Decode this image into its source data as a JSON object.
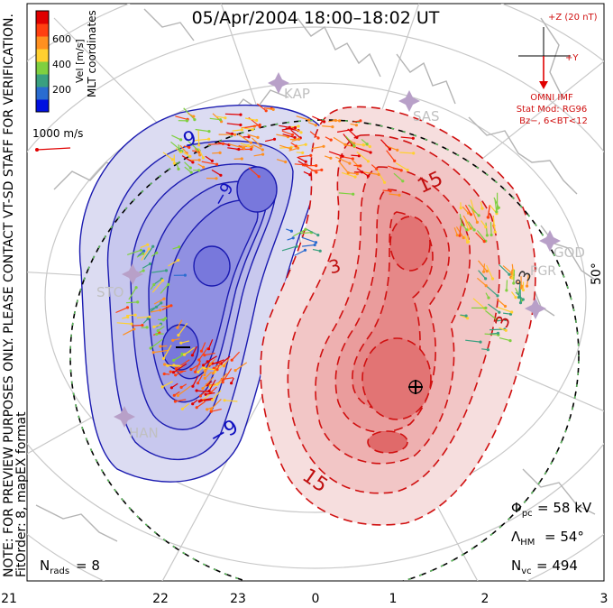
{
  "title": "05/Apr/2004 18:00–18:02 UT",
  "notice": "NOTE: FOR PREVIEW PURPOSES ONLY. PLEASE CONTACT VT-SD STAFF FOR VERIFICATION.",
  "fit_info": "FitOrder: 8, mapEX format",
  "color_bar": {
    "title": "MLT coordinates",
    "label": "Vel [m/s]",
    "ticks": [
      "600",
      "400",
      "200"
    ],
    "colors": [
      "#0010e0",
      "#2a6cd0",
      "#3aa080",
      "#7fd040",
      "#ffd030",
      "#ff9020",
      "#ff4010",
      "#e00000"
    ]
  },
  "vector_scale": "1000 m/s",
  "imf": {
    "z_label": "+Z (20 nT)",
    "y_label": "+Y",
    "source": "OMNI IMF",
    "model": "Stat Mod: RG96",
    "condition": "Bz−, 6<BT<12"
  },
  "stations": [
    "KAP",
    "SAS",
    "STO",
    "HAN",
    "GOD",
    "PGR"
  ],
  "lat_label": "50°",
  "contour_labels": {
    "negative": [
      "9",
      "−9",
      "−9"
    ],
    "positive": [
      "15",
      "3",
      "15",
      "3",
      "°3"
    ]
  },
  "stats": {
    "phi_pc": "= 58 kV",
    "lambda_hm": "= 54°",
    "n_vc": "= 494",
    "n_rads": "= 8"
  },
  "mlt_axis": [
    "21",
    "22",
    "23",
    "0",
    "1",
    "2",
    "3"
  ],
  "palette": {
    "negative": "#1010c0",
    "positive": "#d01010",
    "boundary": "#40c040"
  }
}
